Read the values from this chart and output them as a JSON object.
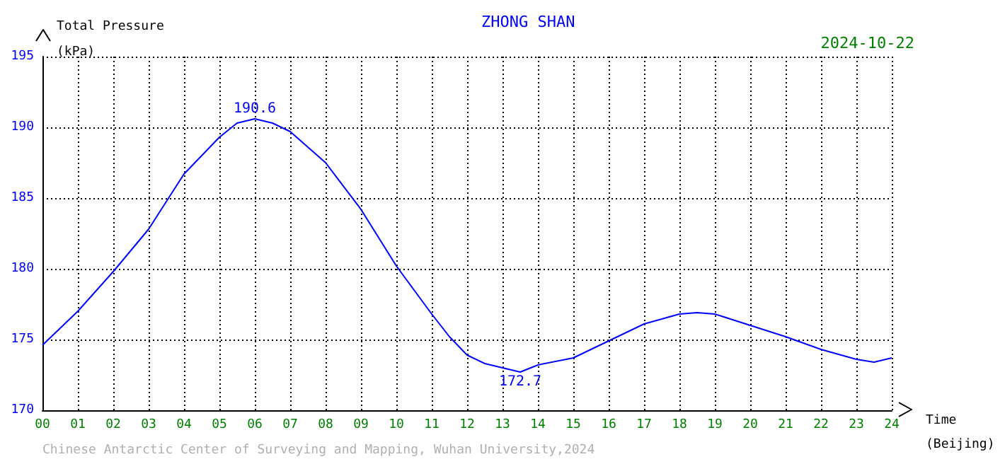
{
  "chart_data": {
    "type": "line",
    "title": "ZHONG SHAN",
    "xlabel": "Time\n(Beijing)",
    "ylabel": "Total Pressure\n(kPa)",
    "x": [
      0,
      1,
      2,
      3,
      4,
      5,
      5.5,
      6,
      6.5,
      7,
      8,
      9,
      10,
      11,
      11.5,
      12,
      12.5,
      13,
      13.5,
      14,
      15,
      16,
      17,
      18,
      18.5,
      19,
      20,
      21,
      22,
      23,
      23.5,
      24
    ],
    "series": [
      {
        "color": "#0000ff",
        "values": [
          174.6,
          177.0,
          179.8,
          182.8,
          186.7,
          189.3,
          190.3,
          190.6,
          190.3,
          189.7,
          187.5,
          184.2,
          180.2,
          176.8,
          175.2,
          173.9,
          173.3,
          173.0,
          172.7,
          173.2,
          173.7,
          174.9,
          176.1,
          176.8,
          176.9,
          176.8,
          176.0,
          175.2,
          174.3,
          173.6,
          173.4,
          173.7
        ]
      }
    ],
    "xlim": [
      0,
      24
    ],
    "xticks": [
      {
        "value": 0,
        "label": "00"
      },
      {
        "value": 1,
        "label": "01"
      },
      {
        "value": 2,
        "label": "02"
      },
      {
        "value": 3,
        "label": "03"
      },
      {
        "value": 4,
        "label": "04"
      },
      {
        "value": 5,
        "label": "05"
      },
      {
        "value": 6,
        "label": "06"
      },
      {
        "value": 7,
        "label": "07"
      },
      {
        "value": 8,
        "label": "08"
      },
      {
        "value": 9,
        "label": "09"
      },
      10,
      11,
      12,
      13,
      14,
      15,
      16,
      17,
      18,
      19,
      20,
      21,
      22,
      23,
      24
    ],
    "ylim": [
      170,
      195
    ],
    "yticks": [
      170,
      175,
      180,
      185,
      190,
      195
    ],
    "grid": true,
    "marker": "none",
    "line_style": "solid",
    "annotations": [
      "2024-10-22",
      "Chinese Antarctic Center of Surveying and Mapping, Wuhan University,2024",
      {
        "text": "190.6",
        "x": 6,
        "y": 190.6
      },
      {
        "text": "172.7",
        "x": 13.5,
        "y": 172.7
      }
    ]
  }
}
